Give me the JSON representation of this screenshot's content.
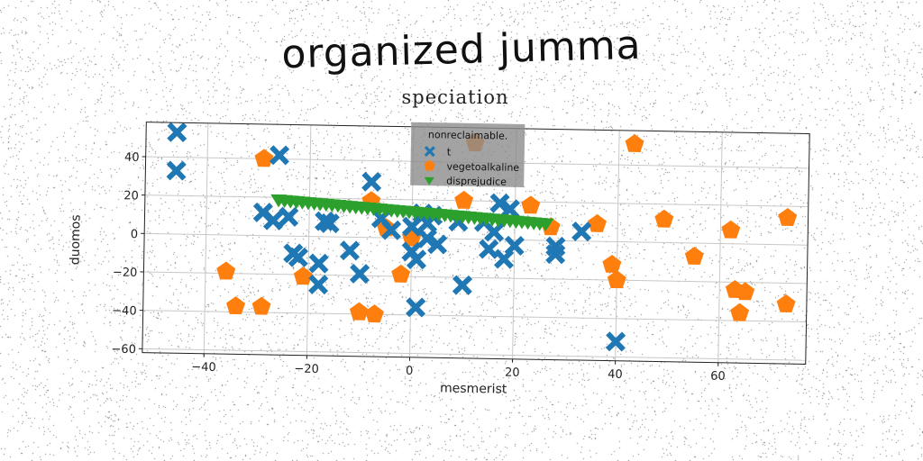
{
  "title": "organized jumma",
  "subtitle": "speciation",
  "chart_data": {
    "type": "scatter",
    "xlabel": "mesmerist",
    "ylabel": "duomos",
    "xlim": [
      -52,
      77
    ],
    "ylim": [
      -62,
      58
    ],
    "xticks": [
      -40,
      -20,
      0,
      20,
      40,
      60
    ],
    "xtick_labels": [
      "−40",
      "−20",
      "0",
      "20",
      "40",
      "60"
    ],
    "yticks": [
      -60,
      -40,
      -20,
      0,
      20,
      40
    ],
    "ytick_labels": [
      "−60",
      "−40",
      "−20",
      "0",
      "20",
      "40"
    ],
    "grid": true,
    "legend": {
      "title": "nonreclaimable.",
      "placement": "top-center"
    },
    "series": [
      {
        "name": "t",
        "marker": "x",
        "color": "#1f77b4",
        "points": [
          [
            -46,
            53
          ],
          [
            -46,
            33
          ],
          [
            -26,
            42
          ],
          [
            -29,
            12
          ],
          [
            -27,
            8
          ],
          [
            -24,
            10
          ],
          [
            -23,
            -9
          ],
          [
            -22,
            -11
          ],
          [
            -18,
            -14
          ],
          [
            -18,
            -25
          ],
          [
            -17,
            8
          ],
          [
            -16,
            7
          ],
          [
            -12,
            -7
          ],
          [
            -10,
            -19
          ],
          [
            -8,
            29
          ],
          [
            -6,
            10
          ],
          [
            -4,
            4
          ],
          [
            0,
            6
          ],
          [
            0,
            -7
          ],
          [
            1,
            -11
          ],
          [
            2,
            13
          ],
          [
            3,
            8
          ],
          [
            3,
            0
          ],
          [
            4,
            12
          ],
          [
            1,
            -36
          ],
          [
            9,
            9
          ],
          [
            10,
            -24
          ],
          [
            14,
            9
          ],
          [
            17,
            19
          ],
          [
            16,
            4
          ],
          [
            18,
            -10
          ],
          [
            20,
            -3
          ],
          [
            19,
            16
          ],
          [
            28,
            -7
          ],
          [
            28,
            -3
          ],
          [
            33,
            5
          ],
          [
            40,
            -52
          ],
          [
            15,
            -5
          ],
          [
            5,
            -3
          ]
        ]
      },
      {
        "name": "vegetoalkaline",
        "marker": "pentagon",
        "color": "#ff7f0e",
        "points": [
          [
            -36,
            -19
          ],
          [
            -34,
            -37
          ],
          [
            -29,
            40
          ],
          [
            -29,
            -37
          ],
          [
            -21,
            -21
          ],
          [
            -10,
            -39
          ],
          [
            -7,
            -40
          ],
          [
            -8,
            19
          ],
          [
            -5,
            5
          ],
          [
            -2,
            -19
          ],
          [
            0,
            0
          ],
          [
            10,
            20
          ],
          [
            12,
            50
          ],
          [
            23,
            18
          ],
          [
            27,
            7
          ],
          [
            36,
            9
          ],
          [
            39,
            -12
          ],
          [
            40,
            -20
          ],
          [
            43,
            51
          ],
          [
            49,
            12
          ],
          [
            55,
            -7
          ],
          [
            62,
            7
          ],
          [
            63,
            -24
          ],
          [
            64,
            -36
          ],
          [
            65,
            -25
          ],
          [
            73,
            14
          ],
          [
            73,
            -31
          ]
        ]
      },
      {
        "name": "disprejudice",
        "marker": "triangle-down",
        "color": "#2ca02c",
        "line": {
          "x": [
            -26,
            26
          ],
          "y": [
            19,
            9
          ]
        }
      }
    ]
  }
}
